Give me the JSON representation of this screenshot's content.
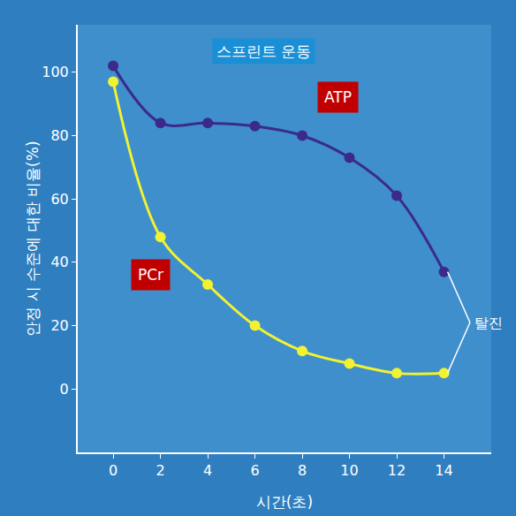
{
  "chart_data": {
    "type": "line",
    "title": "스프린트 운동",
    "x_label": "시간(초)",
    "y_label": "안정 시 수준에 대한 비율(%)",
    "x": [
      0,
      2,
      4,
      6,
      8,
      10,
      12,
      14
    ],
    "series": [
      {
        "name": "ATP",
        "color": "#3b2a8c",
        "marker": "circle",
        "line_style": "solid",
        "values": [
          102,
          84,
          84,
          83,
          80,
          73,
          61,
          37
        ]
      },
      {
        "name": "PCr",
        "color": "#f2f230",
        "marker": "circle",
        "line_style": "solid",
        "values": [
          97,
          48,
          33,
          20,
          12,
          8,
          5,
          5
        ]
      }
    ],
    "annotations": [
      {
        "text": "탈진"
      }
    ],
    "xlim": [
      -1.5,
      16
    ],
    "xticks": [
      0,
      2,
      4,
      6,
      8,
      10,
      12,
      14
    ],
    "ylim": [
      -20,
      115
    ],
    "yticks": [
      0,
      20,
      40,
      60,
      80,
      100
    ],
    "grid": false
  }
}
